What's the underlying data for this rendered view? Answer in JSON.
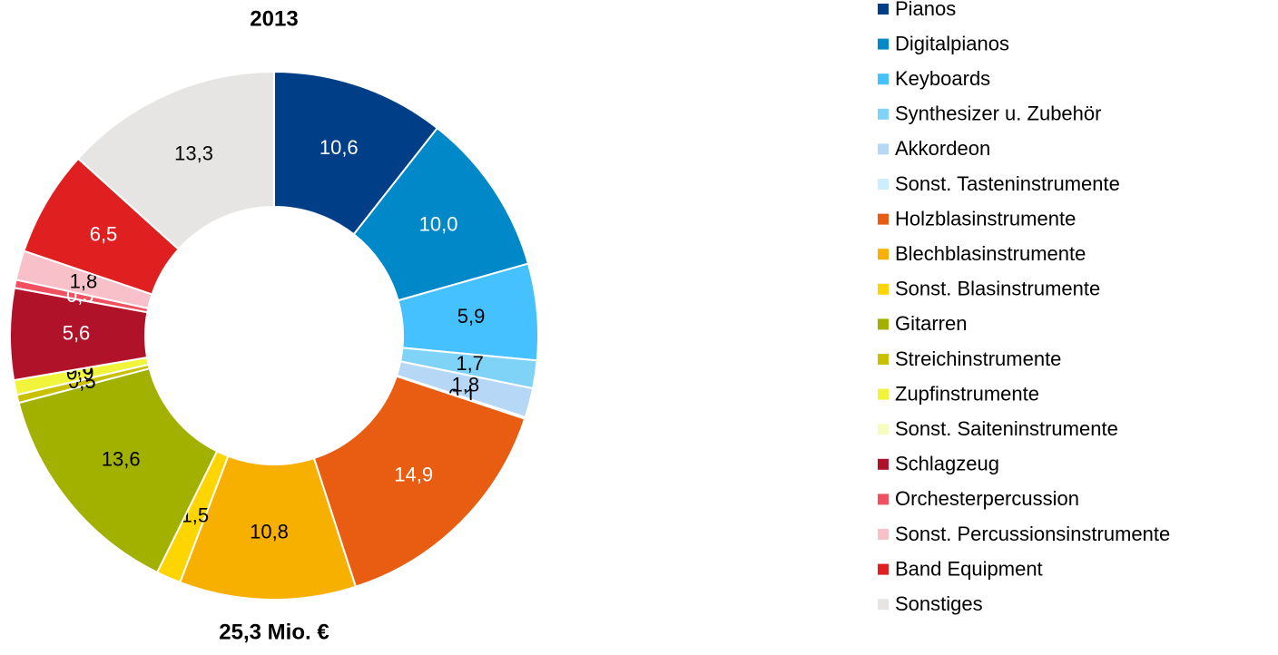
{
  "chart_data": {
    "type": "donut",
    "title": "2013",
    "subtitle": "25,3 Mio. €",
    "categories": [
      "Pianos",
      "Digitalpianos",
      "Keyboards",
      "Synthesizer u. Zubehör",
      "Akkordeon",
      "Sonst. Tasteninstrumente",
      "Holzblasinstrumente",
      "Blechblasinstrumente",
      "Sonst. Blasinstrumente",
      "Gitarren",
      "Streichinstrumente",
      "Zupfinstrumente",
      "Sonst. Saiteninstrumente",
      "Schlagzeug",
      "Orchesterpercussion",
      "Sonst. Percussionsinstrumente",
      "Band Equipment",
      "Sonstiges"
    ],
    "values": [
      10.6,
      10.0,
      5.9,
      1.7,
      1.8,
      0.1,
      14.9,
      10.8,
      1.5,
      13.6,
      0.5,
      0.9,
      0.0,
      5.6,
      0.5,
      1.8,
      6.5,
      13.3
    ],
    "value_labels": [
      "10,6",
      "10,0",
      "5,9",
      "1,7",
      "1,8",
      "0,1",
      "14,9",
      "10,8",
      "1,5",
      "13,6",
      "0,5",
      "0,9",
      "0,0",
      "5,6",
      "0,5",
      "1,8",
      "6,5",
      "13,3"
    ],
    "colors": [
      "#003f87",
      "#0088c9",
      "#45c1ff",
      "#7fd3f7",
      "#b7d7f7",
      "#cdeefc",
      "#e85d12",
      "#f8b000",
      "#ffd500",
      "#a2b000",
      "#c8c000",
      "#f0f53c",
      "#f6fbc0",
      "#b0122a",
      "#f05060",
      "#f8c0c8",
      "#e02020",
      "#e6e5e4"
    ]
  }
}
